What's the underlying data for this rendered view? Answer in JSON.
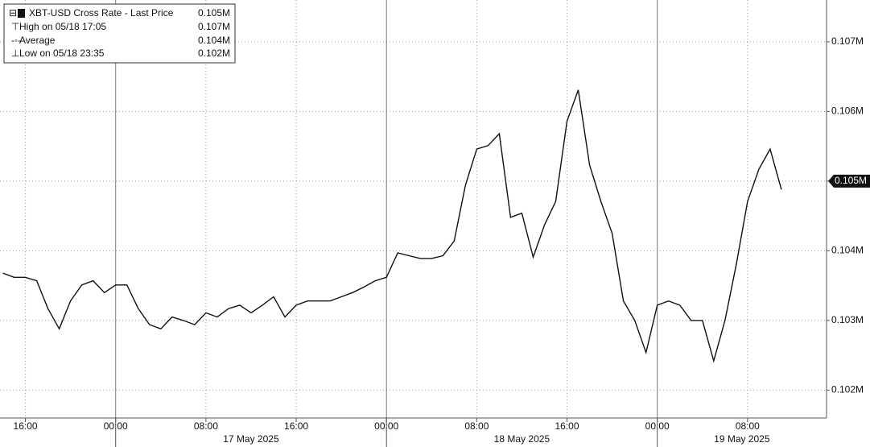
{
  "chart_data": {
    "type": "line",
    "legend": [
      {
        "label": "XBT-USD Cross Rate - Last Price",
        "value": 0.105,
        "value_label": "0.105M"
      },
      {
        "label": "High on 05/18 17:05",
        "value": 0.107,
        "value_label": "0.107M"
      },
      {
        "label": "Average",
        "value": 0.104,
        "value_label": "0.104M"
      },
      {
        "label": "Low on 05/18 23:35",
        "value": 0.102,
        "value_label": "0.102M"
      }
    ],
    "x": [
      "2025-05-16 14:00",
      "2025-05-16 15:00",
      "2025-05-16 16:00",
      "2025-05-16 17:00",
      "2025-05-16 18:00",
      "2025-05-16 19:00",
      "2025-05-16 20:00",
      "2025-05-16 21:00",
      "2025-05-16 22:00",
      "2025-05-16 23:00",
      "2025-05-17 00:00",
      "2025-05-17 01:00",
      "2025-05-17 02:00",
      "2025-05-17 03:00",
      "2025-05-17 04:00",
      "2025-05-17 05:00",
      "2025-05-17 06:00",
      "2025-05-17 07:00",
      "2025-05-17 08:00",
      "2025-05-17 09:00",
      "2025-05-17 10:00",
      "2025-05-17 11:00",
      "2025-05-17 12:00",
      "2025-05-17 13:00",
      "2025-05-17 14:00",
      "2025-05-17 15:00",
      "2025-05-17 16:00",
      "2025-05-17 17:00",
      "2025-05-17 18:00",
      "2025-05-17 19:00",
      "2025-05-17 20:00",
      "2025-05-17 21:00",
      "2025-05-17 22:00",
      "2025-05-17 23:00",
      "2025-05-18 00:00",
      "2025-05-18 01:00",
      "2025-05-18 02:00",
      "2025-05-18 03:00",
      "2025-05-18 04:00",
      "2025-05-18 05:00",
      "2025-05-18 06:00",
      "2025-05-18 07:00",
      "2025-05-18 08:00",
      "2025-05-18 09:00",
      "2025-05-18 10:00",
      "2025-05-18 11:00",
      "2025-05-18 12:00",
      "2025-05-18 13:00",
      "2025-05-18 14:00",
      "2025-05-18 15:00",
      "2025-05-18 16:00",
      "2025-05-18 17:00",
      "2025-05-18 18:00",
      "2025-05-18 19:00",
      "2025-05-18 20:00",
      "2025-05-18 21:00",
      "2025-05-18 22:00",
      "2025-05-18 23:00",
      "2025-05-19 00:00",
      "2025-05-19 01:00",
      "2025-05-19 02:00",
      "2025-05-19 03:00",
      "2025-05-19 04:00",
      "2025-05-19 05:00",
      "2025-05-19 06:00",
      "2025-05-19 07:00",
      "2025-05-19 08:00",
      "2025-05-19 09:00",
      "2025-05-19 10:00",
      "2025-05-19 11:00"
    ],
    "series": [
      {
        "name": "XBT-USD Cross Rate - Last Price",
        "color": "#111111",
        "values": [
          0.10368,
          0.10362,
          0.10362,
          0.10357,
          0.10317,
          0.10288,
          0.10328,
          0.10351,
          0.10357,
          0.1034,
          0.10351,
          0.10351,
          0.10317,
          0.10294,
          0.10288,
          0.10305,
          0.103,
          0.10294,
          0.10311,
          0.10305,
          0.10317,
          0.10322,
          0.10311,
          0.10322,
          0.10334,
          0.10305,
          0.10322,
          0.10328,
          0.10328,
          0.10328,
          0.10334,
          0.1034,
          0.10348,
          0.10357,
          0.10362,
          0.10397,
          0.10393,
          0.10389,
          0.10389,
          0.10393,
          0.10414,
          0.10494,
          0.10546,
          0.10551,
          0.10568,
          0.10448,
          0.10454,
          0.10391,
          0.10437,
          0.10471,
          0.10586,
          0.10631,
          0.10523,
          0.10471,
          0.10425,
          0.10328,
          0.103,
          0.10254,
          0.10322,
          0.10328,
          0.10322,
          0.103,
          0.103,
          0.10242,
          0.103,
          0.1038,
          0.10471,
          0.10517,
          0.10546,
          0.10488
        ]
      }
    ],
    "xlim": [
      "2025-05-16 13:45",
      "2025-05-19 15:00"
    ],
    "xticks": [
      {
        "value": "2025-05-16 16:00",
        "label": "16:00"
      },
      {
        "value": "2025-05-17 00:00",
        "label": "00:00"
      },
      {
        "value": "2025-05-17 08:00",
        "label": "08:00"
      },
      {
        "value": "2025-05-17 16:00",
        "label": "16:00"
      },
      {
        "value": "2025-05-18 00:00",
        "label": "00:00"
      },
      {
        "value": "2025-05-18 08:00",
        "label": "08:00"
      },
      {
        "value": "2025-05-18 16:00",
        "label": "16:00"
      },
      {
        "value": "2025-05-19 00:00",
        "label": "00:00"
      },
      {
        "value": "2025-05-19 08:00",
        "label": "08:00"
      }
    ],
    "dates": [
      {
        "label": "17 May 2025",
        "start": "2025-05-17 00:00",
        "end": "2025-05-18 00:00"
      },
      {
        "label": "18 May 2025",
        "start": "2025-05-18 00:00",
        "end": "2025-05-19 00:00"
      },
      {
        "label": "19 May 2025",
        "start": "2025-05-19 00:00",
        "end": "2025-05-20 00:00"
      }
    ],
    "ylim": [
      0.1016,
      0.1076
    ],
    "yticks": [
      {
        "value": 0.102,
        "label": "0.102M"
      },
      {
        "value": 0.103,
        "label": "0.103M"
      },
      {
        "value": 0.104,
        "label": "0.104M"
      },
      {
        "value": 0.105,
        "label": "0.105M"
      },
      {
        "value": 0.106,
        "label": "0.106M"
      },
      {
        "value": 0.107,
        "label": "0.107M"
      }
    ],
    "grid": true
  }
}
